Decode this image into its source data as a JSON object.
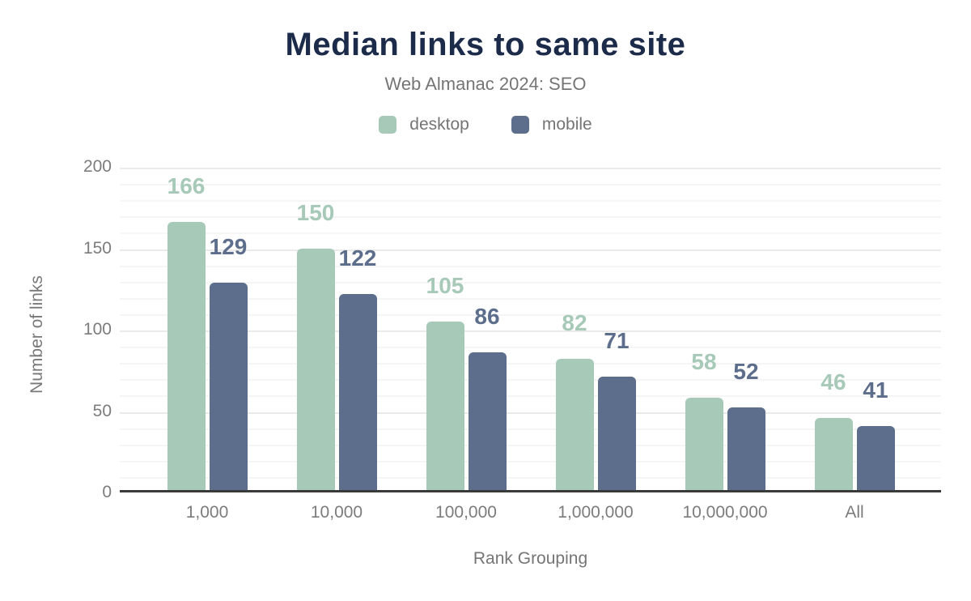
{
  "title": "Median links to same site",
  "subtitle": "Web Almanac 2024: SEO",
  "colors": {
    "title": "#1c2b4a",
    "subtitle_gray": "#757575",
    "axis_text_gray": "#7c7c7c",
    "axis_line": "#3a3a3a",
    "gridline_minor": "#f5f5f5",
    "gridline_major": "#eaeaea",
    "desktop": "#a7c9b8",
    "mobile": "#5d6e8c"
  },
  "chart_data": {
    "type": "bar",
    "title": "Median links to same site",
    "subtitle": "Web Almanac 2024: SEO",
    "categories": [
      "1,000",
      "10,000",
      "100,000",
      "1,000,000",
      "10,000,000",
      "All"
    ],
    "series": [
      {
        "name": "desktop",
        "color": "#a7c9b8",
        "values": [
          166,
          150,
          105,
          82,
          58,
          46
        ]
      },
      {
        "name": "mobile",
        "color": "#5d6e8c",
        "values": [
          129,
          122,
          86,
          71,
          52,
          41
        ]
      }
    ],
    "xlabel": "Rank Grouping",
    "ylabel": "Number of links",
    "ylim": [
      0,
      200
    ],
    "yticks": [
      0,
      50,
      100,
      150,
      200
    ],
    "grid": {
      "minor_step": 10,
      "major_step": 50
    },
    "legend_position": "top",
    "data_labels": true
  }
}
